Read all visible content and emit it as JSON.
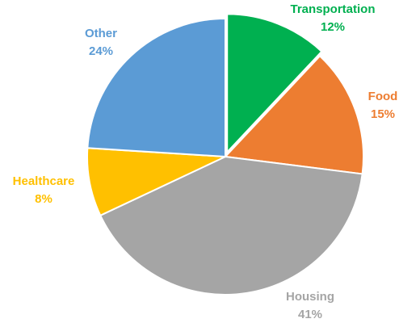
{
  "chart_data": {
    "type": "pie",
    "categories": [
      "Transportation",
      "Food",
      "Housing",
      "Healthcare",
      "Other"
    ],
    "values": [
      12,
      15,
      41,
      8,
      24
    ],
    "value_labels": [
      "12%",
      "15%",
      "41%",
      "8%",
      "24%"
    ],
    "colors": [
      "#00b050",
      "#ed7d31",
      "#a5a5a5",
      "#ffc000",
      "#5b9bd5"
    ]
  }
}
